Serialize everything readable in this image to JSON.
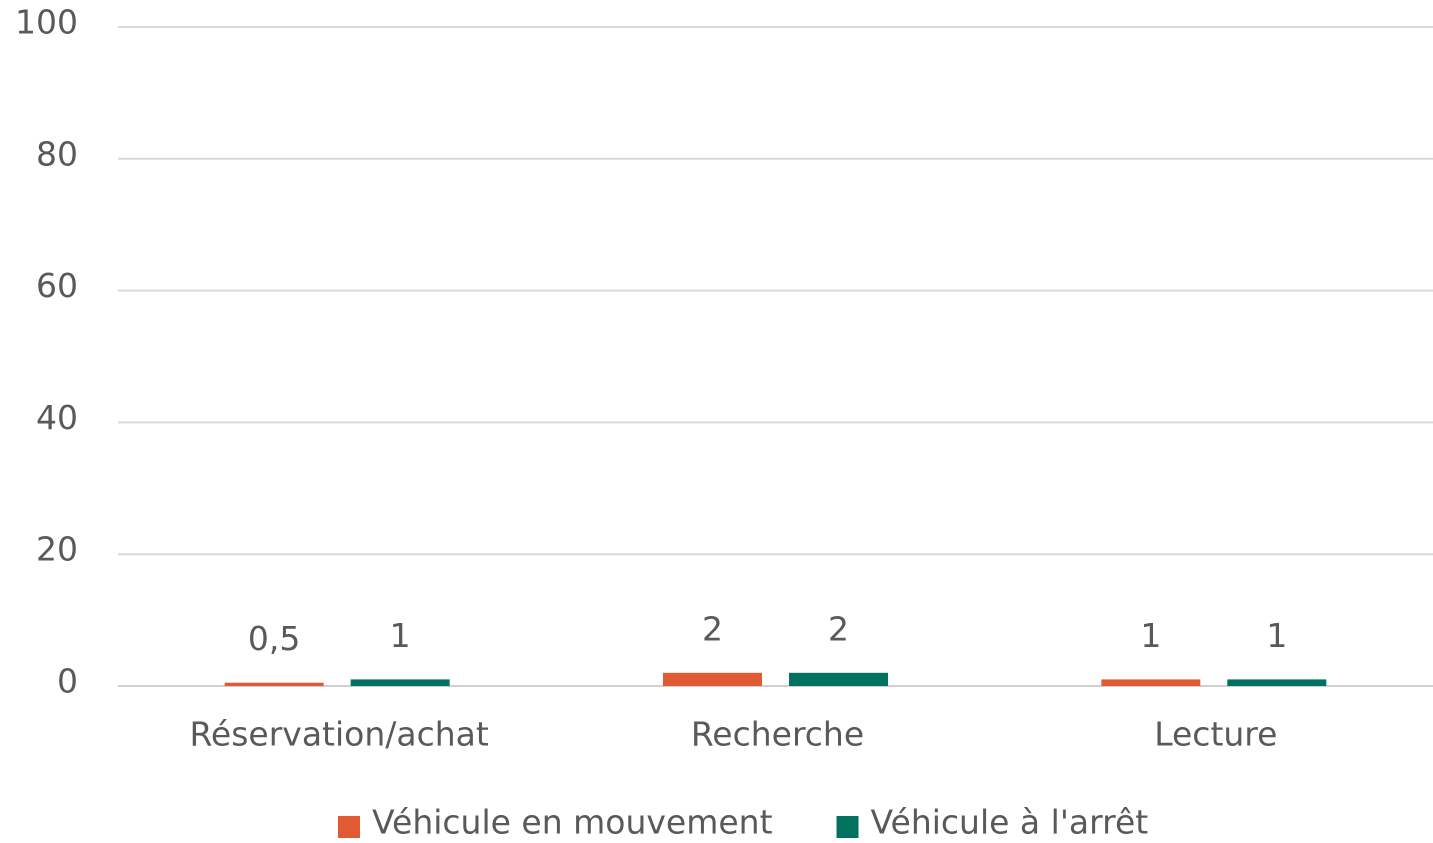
{
  "chart_data": {
    "type": "bar",
    "categories": [
      "Réservation/achat",
      "Recherche",
      "Lecture"
    ],
    "series": [
      {
        "name": "Véhicule en mouvement",
        "color": "#e05a33",
        "values": [
          0.5,
          2,
          1
        ],
        "value_labels": [
          "0,5",
          "2",
          "1"
        ]
      },
      {
        "name": "Véhicule à l'arrêt",
        "color": "#00725f",
        "values": [
          1,
          2,
          1
        ]
      }
    ],
    "ylim": [
      0,
      100
    ],
    "yticks": [
      0,
      20,
      40,
      60,
      80,
      100
    ],
    "grid": true,
    "legend": "bottom"
  }
}
